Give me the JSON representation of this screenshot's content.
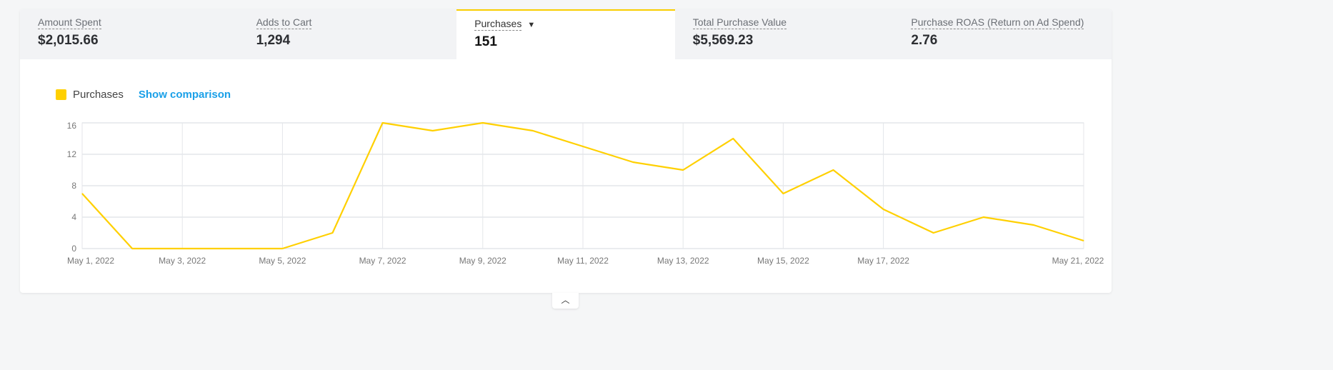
{
  "metrics": [
    {
      "label": "Amount Spent",
      "value": "$2,015.66"
    },
    {
      "label": "Adds to Cart",
      "value": "1,294"
    },
    {
      "label": "Purchases",
      "value": "151",
      "active": true
    },
    {
      "label": "Total Purchase Value",
      "value": "$5,569.23"
    },
    {
      "label": "Purchase ROAS (Return on Ad Spend)",
      "value": "2.76"
    }
  ],
  "legend": {
    "label": "Purchases",
    "comparison": "Show comparison",
    "color": "#ffd000"
  },
  "chart_data": {
    "type": "line",
    "x": [
      "May 1, 2022",
      "May 2, 2022",
      "May 3, 2022",
      "May 4, 2022",
      "May 5, 2022",
      "May 6, 2022",
      "May 7, 2022",
      "May 8, 2022",
      "May 9, 2022",
      "May 10, 2022",
      "May 11, 2022",
      "May 12, 2022",
      "May 13, 2022",
      "May 14, 2022",
      "May 15, 2022",
      "May 16, 2022",
      "May 17, 2022",
      "May 18, 2022",
      "May 19, 2022",
      "May 20, 2022",
      "May 21, 2022"
    ],
    "series": [
      {
        "name": "Purchases",
        "values": [
          7,
          0,
          0,
          0,
          0,
          2,
          16,
          15,
          16,
          15,
          13,
          11,
          10,
          14,
          7,
          10,
          5,
          2,
          4,
          3,
          1
        ]
      }
    ],
    "xtick_labels": [
      "May 1, 2022",
      "May 3, 2022",
      "May 5, 2022",
      "May 7, 2022",
      "May 9, 2022",
      "May 11, 2022",
      "May 13, 2022",
      "May 15, 2022",
      "May 17, 2022",
      "May 21, 2022"
    ],
    "xtick_index": [
      0,
      2,
      4,
      6,
      8,
      10,
      12,
      14,
      16,
      20
    ],
    "yticks": [
      0,
      4,
      8,
      12,
      16
    ],
    "ylim": [
      0,
      16
    ],
    "grid": true
  },
  "collapse_icon": "chevron-up-icon"
}
